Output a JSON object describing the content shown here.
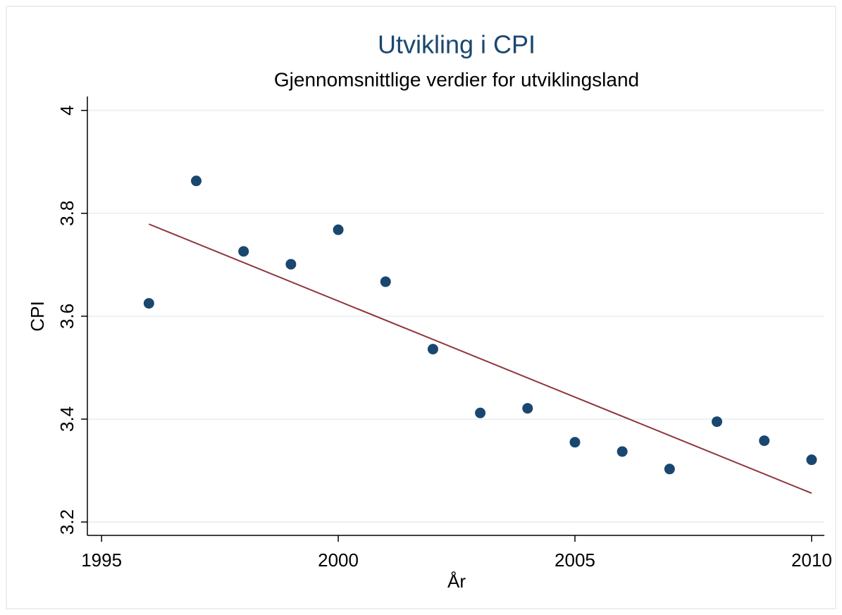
{
  "chart_data": {
    "type": "scatter",
    "title": "Utvikling i CPI",
    "subtitle": "Gjennomsnittlige verdier for utviklingsland",
    "x_label": "År",
    "y_label": "CPI",
    "x": [
      1996,
      1997,
      1998,
      1999,
      2000,
      2001,
      2002,
      2003,
      2004,
      2005,
      2006,
      2007,
      2008,
      2009,
      2010
    ],
    "series": [
      {
        "type": "scatter",
        "color": "#1a476f",
        "values": [
          3.625,
          3.863,
          3.726,
          3.701,
          3.768,
          3.667,
          3.536,
          3.412,
          3.421,
          3.355,
          3.337,
          3.303,
          3.395,
          3.358,
          3.321
        ]
      },
      {
        "type": "line",
        "color": "#90353b",
        "x": [
          1996,
          2010
        ],
        "values": [
          3.779,
          3.256
        ]
      }
    ],
    "xlim": [
      1994.7,
      2010.27
    ],
    "ylim": [
      3.174,
      4.027
    ],
    "xticks": [
      1995,
      2000,
      2005,
      2010
    ],
    "yticks": [
      3.2,
      3.4,
      3.6,
      3.8,
      4
    ],
    "grid": true
  }
}
